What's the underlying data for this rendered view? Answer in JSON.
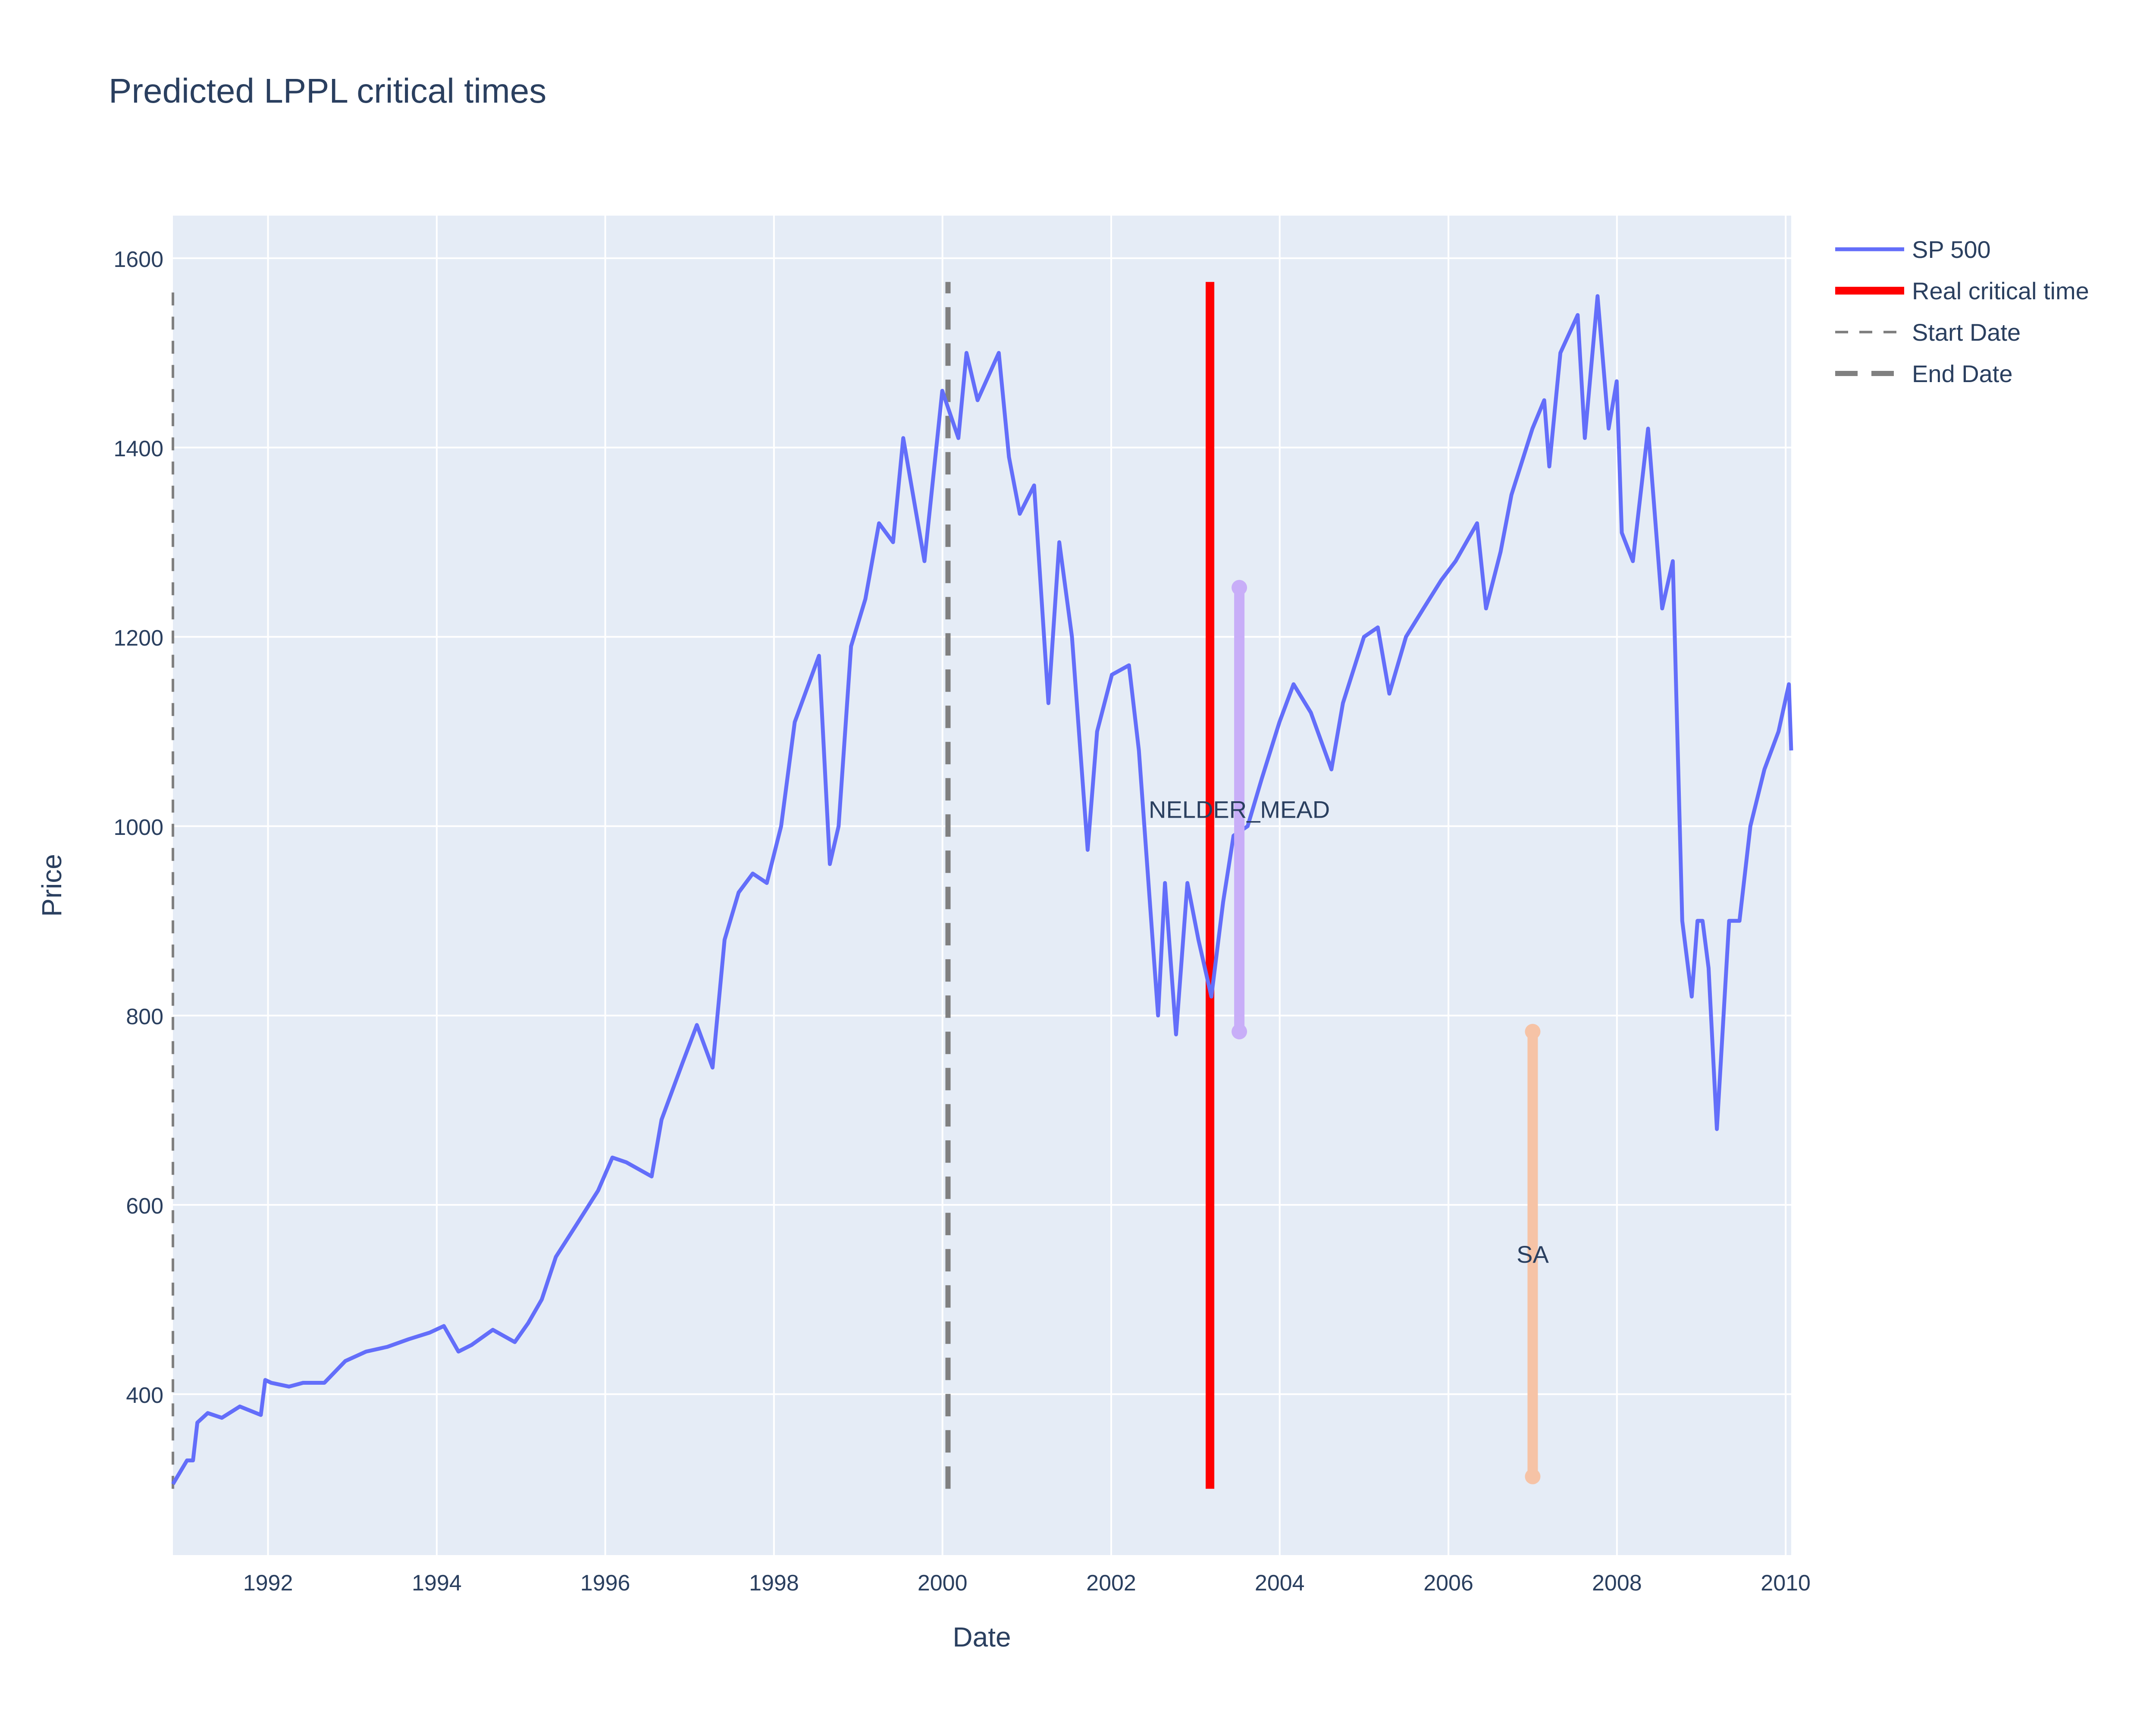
{
  "chart_data": {
    "type": "line",
    "title": "Predicted LPPL critical times",
    "xlabel": "Date",
    "ylabel": "Price",
    "xlim": [
      "1990-11-15",
      "2010-01-25"
    ],
    "ylim": [
      230,
      1645
    ],
    "x_ticks": [
      "1992",
      "1994",
      "1996",
      "1998",
      "2000",
      "2002",
      "2004",
      "2006",
      "2008",
      "2010"
    ],
    "y_ticks": [
      400,
      600,
      800,
      1000,
      1200,
      1400,
      1600
    ],
    "grid": true,
    "legend_position": "top-right",
    "colors": {
      "background": "#e5ecf6",
      "grid": "#ffffff",
      "text": "#2a3f5f",
      "sp500": "#636efa",
      "real_critical": "#ff0000",
      "start_end": "#808080",
      "nelder_mead": "#c8aef8",
      "sa": "#f6c3a6"
    },
    "series": [
      {
        "name": "SP 500",
        "x": [
          "1990-11-15",
          "1991-01-15",
          "1991-02-10",
          "1991-03-01",
          "1991-04-15",
          "1991-06-15",
          "1991-09-01",
          "1991-12-01",
          "1991-12-20",
          "1992-01-15",
          "1992-04-01",
          "1992-06-01",
          "1992-09-01",
          "1992-12-01",
          "1993-03-01",
          "1993-06-01",
          "1993-09-01",
          "1993-12-01",
          "1994-02-01",
          "1994-04-05",
          "1994-06-01",
          "1994-09-01",
          "1994-12-05",
          "1995-02-01",
          "1995-04-01",
          "1995-06-01",
          "1995-09-01",
          "1995-12-01",
          "1996-02-01",
          "1996-04-01",
          "1996-07-20",
          "1996-09-01",
          "1996-12-01",
          "1997-02-01",
          "1997-04-10",
          "1997-06-01",
          "1997-08-01",
          "1997-10-01",
          "1997-12-01",
          "1998-02-01",
          "1998-04-01",
          "1998-07-15",
          "1998-08-31",
          "1998-10-08",
          "1998-12-01",
          "1999-02-01",
          "1999-04-01",
          "1999-06-01",
          "1999-07-15",
          "1999-10-15",
          "1999-12-31",
          "2000-03-10",
          "2000-04-14",
          "2000-06-01",
          "2000-09-01",
          "2000-10-15",
          "2000-12-01",
          "2001-02-01",
          "2001-04-04",
          "2001-05-21",
          "2001-07-15",
          "2001-09-21",
          "2001-11-01",
          "2002-01-04",
          "2002-03-19",
          "2002-05-01",
          "2002-07-23",
          "2002-08-22",
          "2002-10-09",
          "2002-11-27",
          "2003-01-14",
          "2003-03-11",
          "2003-05-01",
          "2003-06-15",
          "2003-08-15",
          "2003-10-15",
          "2003-12-31",
          "2004-03-01",
          "2004-05-15",
          "2004-08-12",
          "2004-10-01",
          "2004-12-31",
          "2005-03-01",
          "2005-04-20",
          "2005-07-01",
          "2005-09-15",
          "2005-12-01",
          "2006-02-01",
          "2006-05-05",
          "2006-06-13",
          "2006-08-15",
          "2006-10-01",
          "2006-12-31",
          "2007-02-20",
          "2007-03-14",
          "2007-05-01",
          "2007-07-15",
          "2007-08-15",
          "2007-10-09",
          "2007-11-26",
          "2007-12-31",
          "2008-01-22",
          "2008-03-10",
          "2008-05-15",
          "2008-07-15",
          "2008-08-30",
          "2008-10-10",
          "2008-11-20",
          "2008-12-15",
          "2009-01-06",
          "2009-02-01",
          "2009-03-09",
          "2009-05-01",
          "2009-06-15",
          "2009-08-01",
          "2009-10-01",
          "2009-12-01",
          "2010-01-15",
          "2010-01-25"
        ],
        "y": [
          305,
          330,
          330,
          370,
          380,
          375,
          387,
          378,
          415,
          412,
          408,
          412,
          412,
          435,
          445,
          450,
          458,
          465,
          472,
          445,
          452,
          468,
          455,
          475,
          500,
          545,
          580,
          615,
          650,
          645,
          630,
          690,
          750,
          790,
          745,
          880,
          930,
          950,
          940,
          1000,
          1110,
          1180,
          960,
          1000,
          1190,
          1240,
          1320,
          1300,
          1410,
          1280,
          1460,
          1410,
          1500,
          1450,
          1500,
          1390,
          1330,
          1360,
          1130,
          1300,
          1200,
          975,
          1100,
          1160,
          1170,
          1080,
          800,
          940,
          780,
          940,
          880,
          820,
          920,
          990,
          1000,
          1050,
          1110,
          1150,
          1120,
          1060,
          1130,
          1200,
          1210,
          1140,
          1200,
          1230,
          1260,
          1280,
          1320,
          1230,
          1290,
          1350,
          1420,
          1450,
          1380,
          1500,
          1540,
          1410,
          1560,
          1420,
          1470,
          1310,
          1280,
          1420,
          1230,
          1280,
          900,
          820,
          900,
          900,
          850,
          680,
          900,
          900,
          1000,
          1060,
          1100,
          1150,
          1080
        ]
      },
      {
        "name": "Real critical time",
        "x": [
          "2003-03-05",
          "2003-03-05"
        ],
        "y": [
          300,
          1575
        ]
      },
      {
        "name": "Start Date",
        "x": [
          "1990-11-15",
          "1990-11-15"
        ],
        "y": [
          300,
          1575
        ]
      },
      {
        "name": "End Date",
        "x": [
          "2000-01-25",
          "2000-01-25"
        ],
        "y": [
          300,
          1575
        ]
      }
    ],
    "predictions": [
      {
        "label": "NELDER_MEAD",
        "x": "2003-07-10",
        "y_low": 783,
        "y_high": 1252,
        "label_y": 1018,
        "color": "#c8aef8"
      },
      {
        "label": "SA",
        "x": "2007-01-01",
        "y_low": 313,
        "y_high": 783,
        "label_y": 548,
        "color": "#f6c3a6"
      }
    ]
  }
}
